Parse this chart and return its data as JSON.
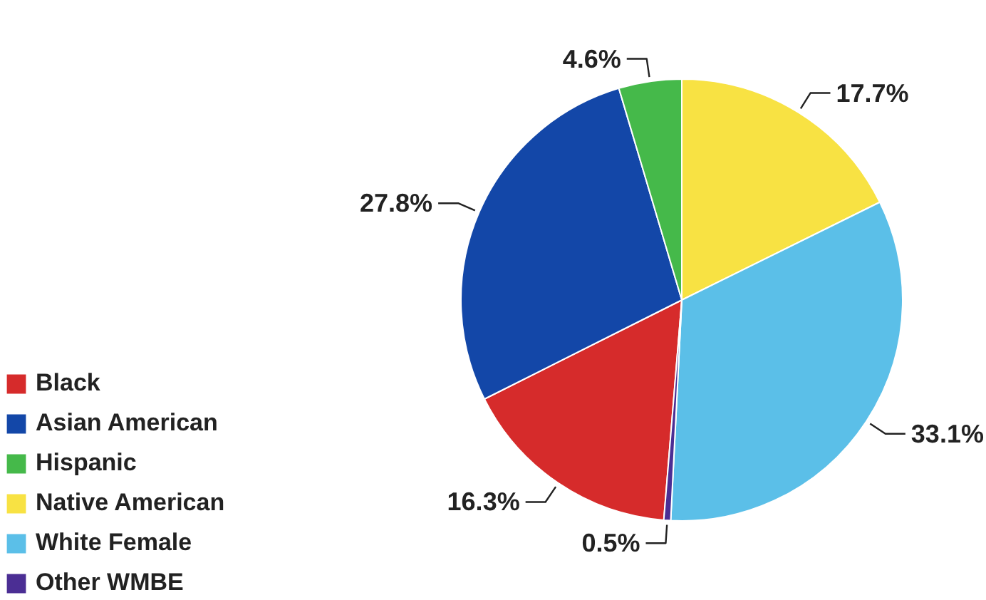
{
  "chart_data": {
    "type": "pie",
    "categories": [
      "Black",
      "Asian American",
      "Hispanic",
      "Native American",
      "White Female",
      "Other WMBE"
    ],
    "values": [
      16.3,
      27.8,
      4.6,
      17.7,
      33.1,
      0.5
    ],
    "colors": [
      "#d62b2b",
      "#1347a8",
      "#45b94a",
      "#f8e243",
      "#5bbfe8",
      "#4b2e94"
    ],
    "value_labels": [
      "16.3%",
      "27.8%",
      "4.6%",
      "17.7%",
      "33.1%",
      "0.5%"
    ],
    "legend": "bottom left"
  }
}
